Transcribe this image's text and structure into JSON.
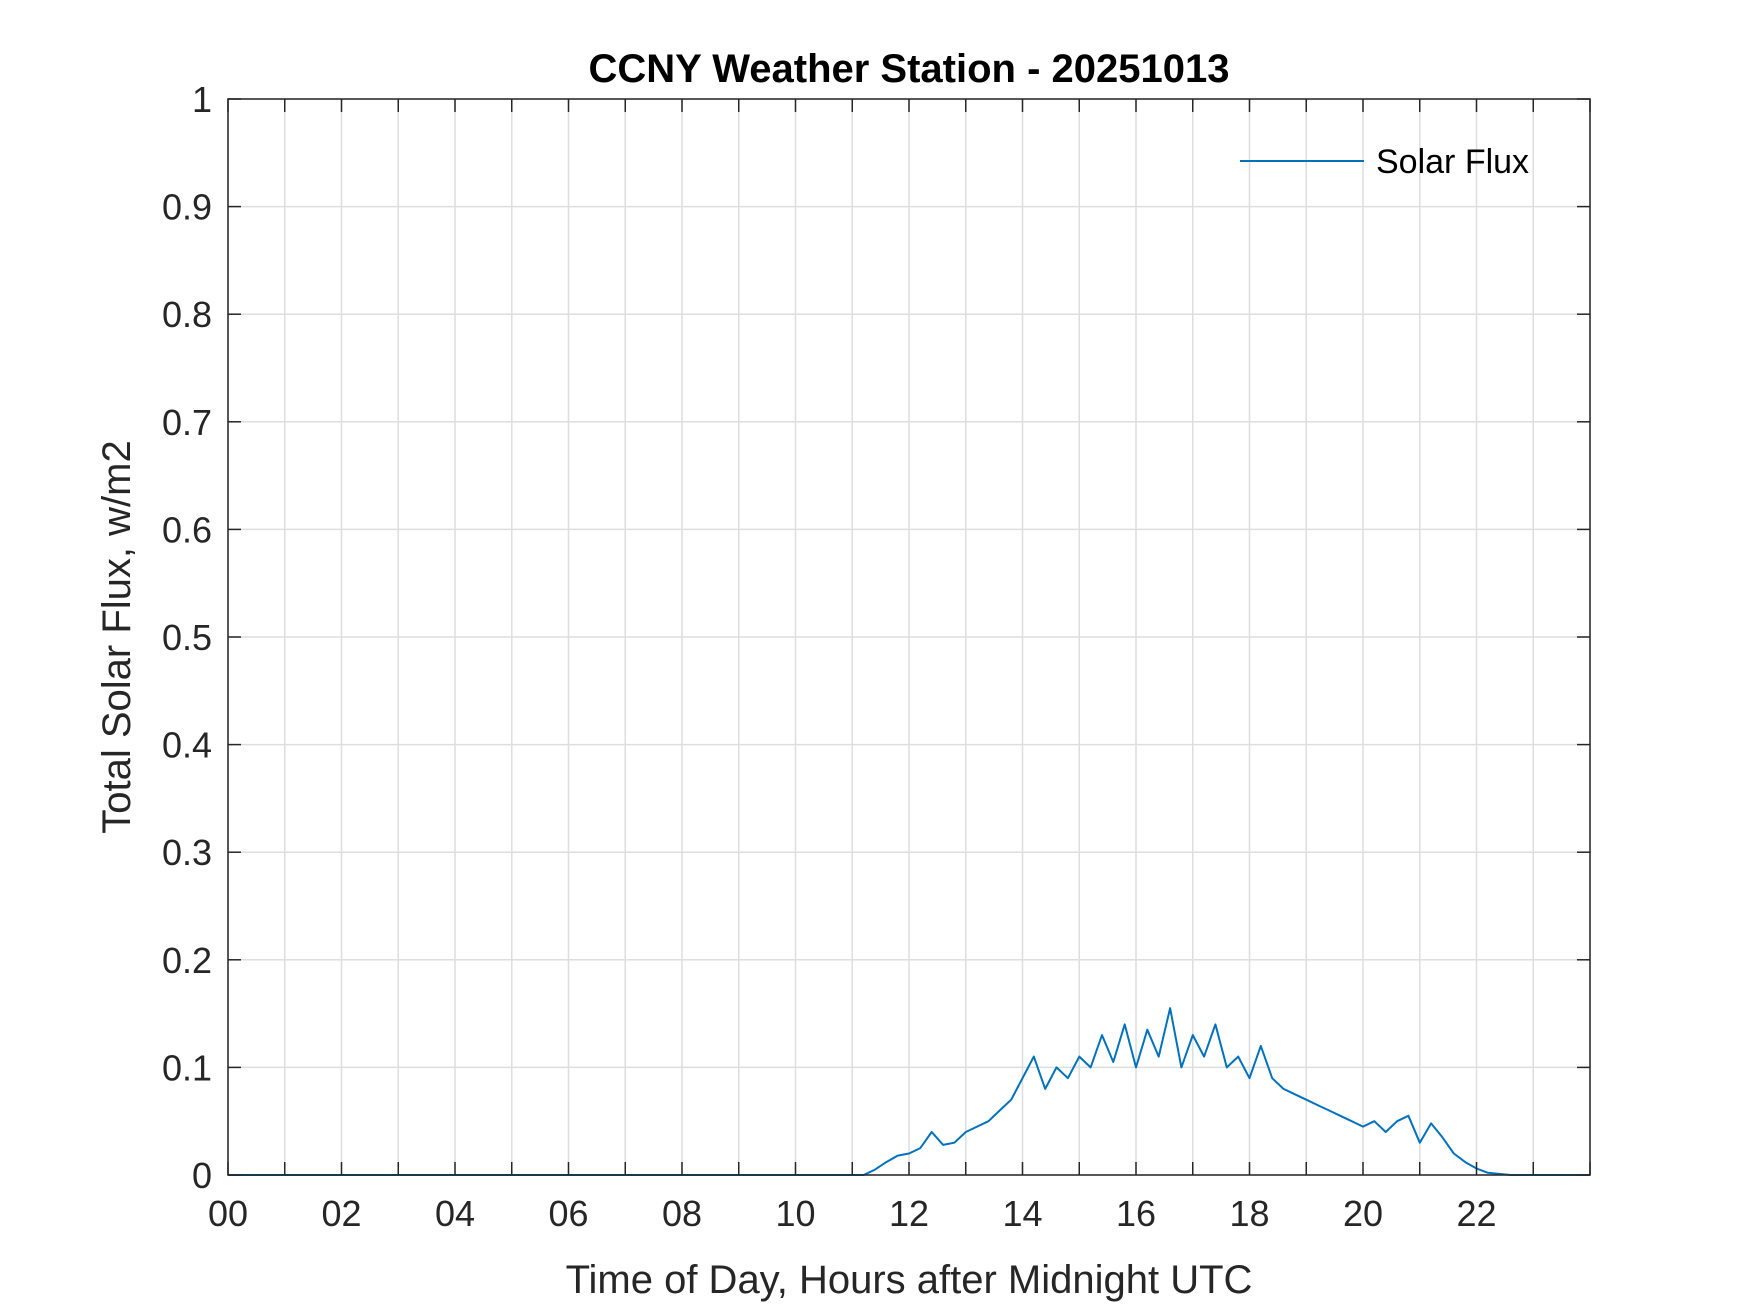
{
  "chart_data": {
    "type": "line",
    "title": "CCNY Weather Station - 20251013",
    "xlabel": "Time of Day, Hours after Midnight UTC",
    "ylabel": "Total Solar Flux, w/m2",
    "xlim": [
      0,
      24
    ],
    "ylim": [
      0,
      1
    ],
    "x_ticks": [
      0,
      2,
      4,
      6,
      8,
      10,
      12,
      14,
      16,
      18,
      20,
      22
    ],
    "x_tick_labels": [
      "00",
      "02",
      "04",
      "06",
      "08",
      "10",
      "12",
      "14",
      "16",
      "18",
      "20",
      "22"
    ],
    "x_grid": [
      0,
      1,
      2,
      3,
      4,
      5,
      6,
      7,
      8,
      9,
      10,
      11,
      12,
      13,
      14,
      15,
      16,
      17,
      18,
      19,
      20,
      21,
      22,
      23,
      24
    ],
    "y_ticks": [
      0,
      0.1,
      0.2,
      0.3,
      0.4,
      0.5,
      0.6,
      0.7,
      0.8,
      0.9,
      1
    ],
    "y_tick_labels": [
      "0",
      "0.1",
      "0.2",
      "0.3",
      "0.4",
      "0.5",
      "0.6",
      "0.7",
      "0.8",
      "0.9",
      "1"
    ],
    "grid": true,
    "legend_position": "top-right",
    "series": [
      {
        "name": "Solar Flux",
        "color": "#0072BD",
        "x": [
          0,
          11.2,
          11.4,
          11.6,
          11.8,
          12.0,
          12.2,
          12.4,
          12.6,
          12.8,
          13.0,
          13.2,
          13.4,
          13.6,
          13.8,
          14.0,
          14.2,
          14.4,
          14.6,
          14.8,
          15.0,
          15.2,
          15.4,
          15.6,
          15.8,
          16.0,
          16.2,
          16.4,
          16.6,
          16.8,
          17.0,
          17.2,
          17.4,
          17.6,
          17.8,
          18.0,
          18.2,
          18.4,
          18.6,
          18.8,
          19.0,
          19.2,
          19.4,
          19.6,
          19.8,
          20.0,
          20.2,
          20.4,
          20.6,
          20.8,
          21.0,
          21.2,
          21.4,
          21.6,
          21.8,
          22.0,
          22.2,
          22.4,
          22.6,
          24
        ],
        "values": [
          0,
          0,
          0.005,
          0.012,
          0.018,
          0.02,
          0.025,
          0.04,
          0.028,
          0.03,
          0.04,
          0.045,
          0.05,
          0.06,
          0.07,
          0.09,
          0.11,
          0.08,
          0.1,
          0.09,
          0.11,
          0.1,
          0.13,
          0.105,
          0.14,
          0.1,
          0.135,
          0.11,
          0.155,
          0.1,
          0.13,
          0.11,
          0.14,
          0.1,
          0.11,
          0.09,
          0.12,
          0.09,
          0.08,
          0.075,
          0.07,
          0.065,
          0.06,
          0.055,
          0.05,
          0.045,
          0.05,
          0.04,
          0.05,
          0.055,
          0.03,
          0.048,
          0.035,
          0.02,
          0.012,
          0.006,
          0.002,
          0.001,
          0,
          0
        ]
      }
    ]
  }
}
